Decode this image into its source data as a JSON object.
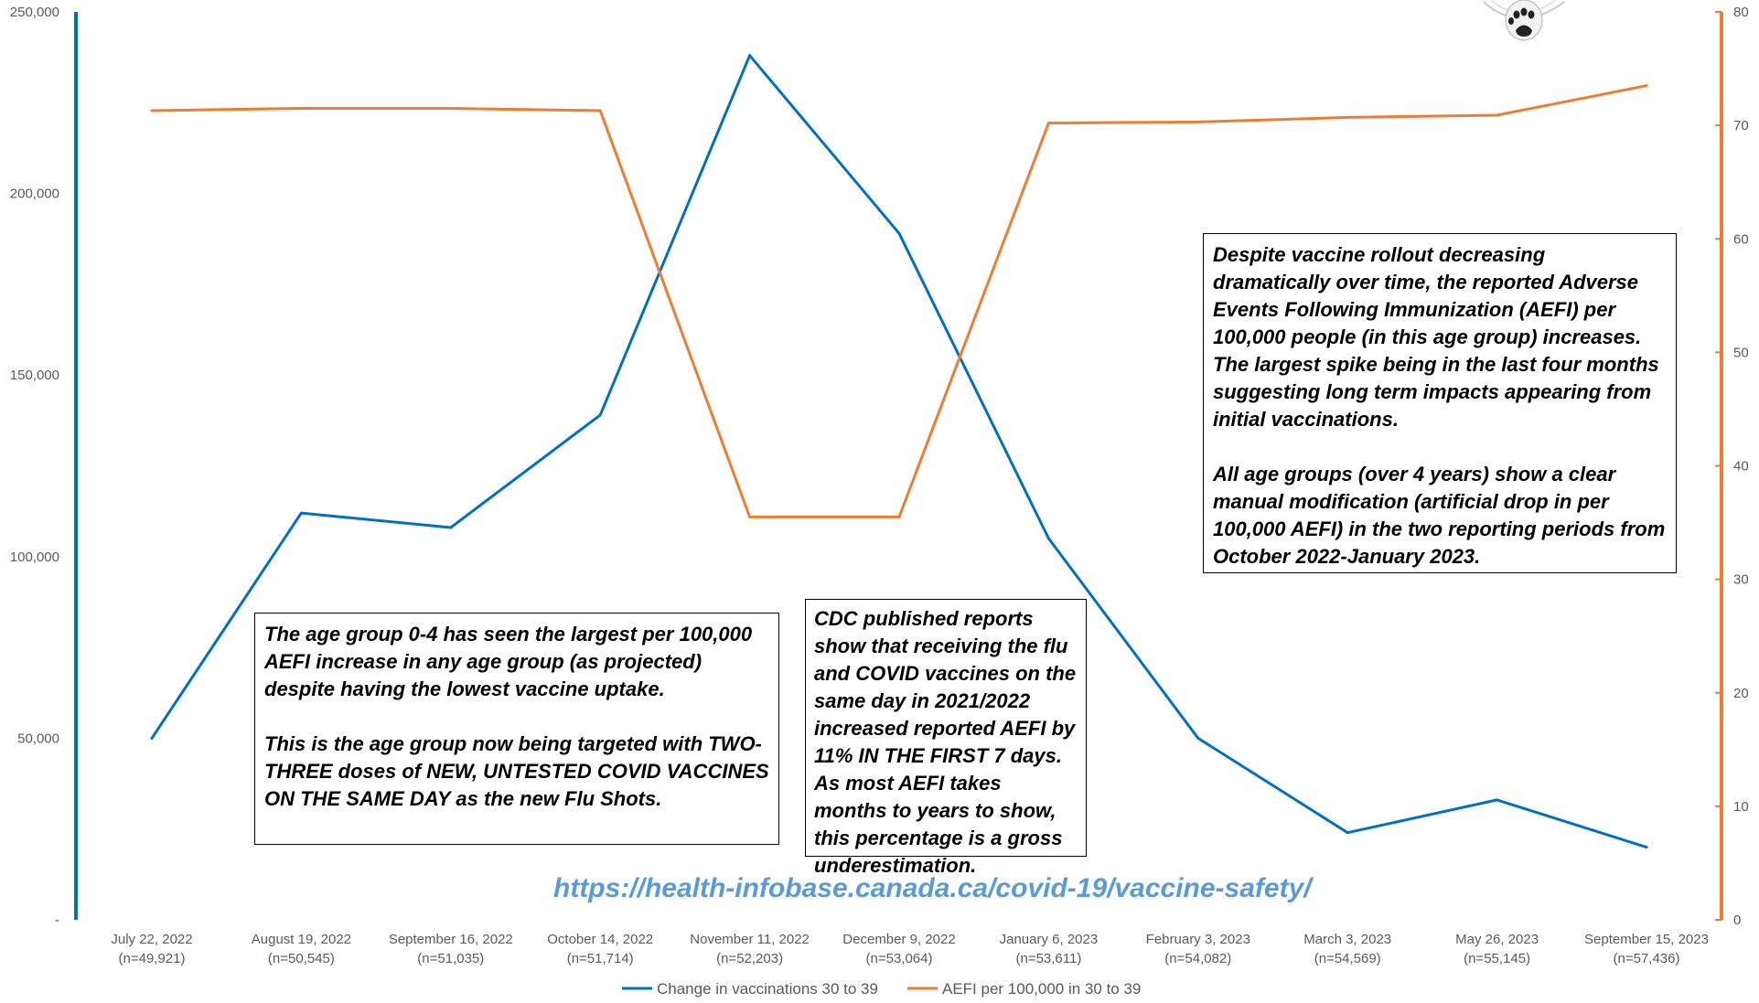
{
  "chart_data": {
    "type": "line",
    "categories": [
      [
        "July 22, 2022",
        "(n=49,921)"
      ],
      [
        "August 19, 2022",
        "(n=50,545)"
      ],
      [
        "September 16, 2022",
        "(n=51,035)"
      ],
      [
        "October 14, 2022",
        "(n=51,714)"
      ],
      [
        "November 11, 2022",
        "(n=52,203)"
      ],
      [
        "December 9, 2022",
        "(n=53,064)"
      ],
      [
        "January 6, 2023",
        "(n=53,611)"
      ],
      [
        "February 3, 2023",
        "(n=54,082)"
      ],
      [
        "March 3, 2023",
        "(n=54,569)"
      ],
      [
        "May 26, 2023",
        "(n=55,145)"
      ],
      [
        "September 15, 2023",
        "(n=57,436)"
      ]
    ],
    "series": [
      {
        "name": "Change in vaccinations 30 to 39",
        "axis": "left",
        "color": "#0070c0",
        "values": [
          50000,
          112000,
          108000,
          139000,
          238000,
          189000,
          105000,
          50000,
          24000,
          33000,
          20000
        ]
      },
      {
        "name": "AEFI per 100,000 in 30 to 39",
        "axis": "right",
        "color": "#ed7d31",
        "values": [
          71.3,
          71.5,
          71.5,
          71.3,
          35.5,
          35.5,
          70.2,
          70.3,
          70.7,
          70.9,
          73.5
        ]
      }
    ],
    "y_left": {
      "min": 0,
      "max": 250000,
      "ticks": [
        [
          0,
          "-"
        ],
        [
          50000,
          "50,000"
        ],
        [
          100000,
          "100,000"
        ],
        [
          150000,
          "150,000"
        ],
        [
          200000,
          "200,000"
        ],
        [
          250000,
          "250,000"
        ]
      ],
      "axis_color": "#0070c0"
    },
    "y_right": {
      "min": 0,
      "max": 80,
      "ticks": [
        0,
        10,
        20,
        30,
        40,
        50,
        60,
        70,
        80
      ],
      "axis_color": "#ed7d31"
    },
    "grid": false,
    "legend": "bottom-center"
  },
  "annotations": {
    "top_right_note": [
      "Despite vaccine rollout decreasing dramatically over time, the reported Adverse Events Following Immunization (AEFI) per 100,000 people (in this age group) increases. The largest spike being in the last four months suggesting long term impacts appearing from initial vaccinations.",
      "All age groups (over 4 years) show a clear manual modification (artificial drop in per 100,000 AEFI)  in the two reporting periods from October 2022-January 2023."
    ],
    "left_note": [
      "The age group 0-4 has seen the largest per 100,000 AEFI increase in any age group (as projected) despite having the lowest vaccine uptake.",
      "This is the age group now being targeted with TWO-THREE doses of NEW, UNTESTED COVID VACCINES ON THE SAME DAY as the new Flu Shots."
    ],
    "middle_note": [
      "CDC published reports show that receiving the flu and COVID vaccines on the same day in 2021/2022 increased reported AEFI by 11% IN THE FIRST 7 days. As most AEFI takes months to years to show, this percentage is a gross underestimation."
    ],
    "source_url": "https://health-infobase.canada.ca/covid-19/vaccine-safety/"
  },
  "logo": {
    "icon": "paw-print-icon"
  }
}
